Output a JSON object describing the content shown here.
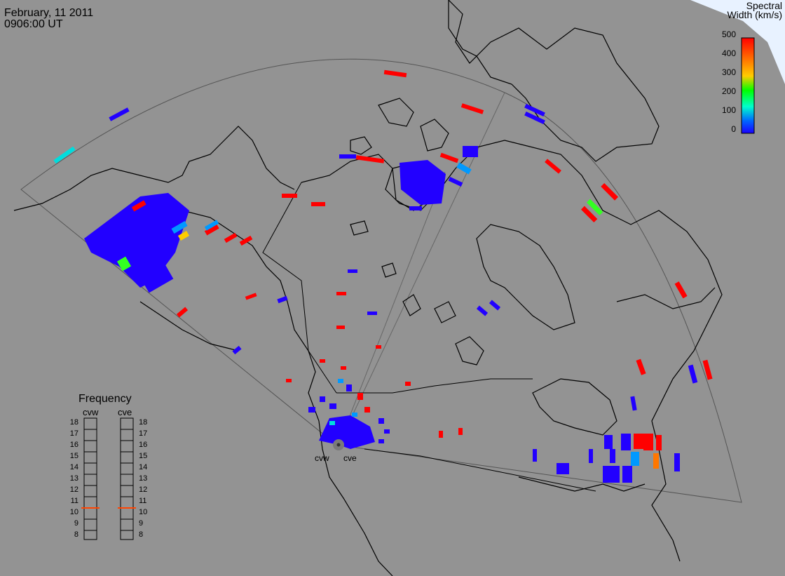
{
  "header": {
    "date": "February, 11 2011",
    "time": "0906:00 UT"
  },
  "colorbar": {
    "title_line1": "Spectral",
    "title_line2": "Width (km/s)",
    "ticks": [
      "500",
      "400",
      "300",
      "200",
      "100",
      "0"
    ],
    "colors": [
      "#ff0000",
      "#ff6600",
      "#ffcc00",
      "#00ff00",
      "#00ffcc",
      "#0066ff",
      "#1a00ff"
    ]
  },
  "frequency": {
    "title": "Frequency",
    "radars": [
      "cvw",
      "cve"
    ],
    "levels": [
      "18",
      "17",
      "16",
      "15",
      "14",
      "13",
      "12",
      "11",
      "10",
      "9",
      "8"
    ],
    "current": {
      "cvw": 11,
      "cve": 11
    },
    "indicator_color": "#ff4400"
  },
  "radar_sites": [
    "cvw",
    "cve"
  ],
  "echo_colors": {
    "low": "#2200ff",
    "mid_low": "#0099ff",
    "cyan": "#00dddd",
    "green": "#33ff22",
    "yellow": "#ffcc00",
    "orange": "#ff7700",
    "high": "#ff0000"
  }
}
